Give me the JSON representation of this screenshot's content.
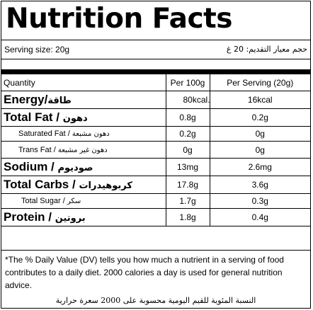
{
  "title": "Nutrition Facts",
  "serving": {
    "en": "Serving size: 20g",
    "ar": "حجم معيار التقديم: 20 غ"
  },
  "table": {
    "headers": [
      "Quantity",
      "Per 100g",
      "Per Serving (20g)"
    ],
    "rows": [
      {
        "label": "Energy/",
        "ar": "طاقة",
        "per100": "80kcal.",
        "perServing": "16kcal"
      },
      {
        "label": "Total Fat / ",
        "ar": "دهون",
        "per100": "0.8g",
        "perServing": "0.2g"
      },
      {
        "label": "Saturated Fat / ",
        "ar": "دهون مشبعة",
        "per100": "0.2g",
        "perServing": "0g"
      },
      {
        "label": "Trans Fat / ",
        "ar": "دهون غير مشبعة",
        "per100": "0g",
        "perServing": "0g"
      },
      {
        "label": "Sodium / ",
        "ar": "صوديوم",
        "per100": "13mg",
        "perServing": "2.6mg"
      },
      {
        "label": "Total Carbs / ",
        "ar": "كربوهيدرات",
        "per100": "17.8g",
        "perServing": "3.6g"
      },
      {
        "label": "Total Sugar / ",
        "ar": "سكر",
        "per100": "1.7g",
        "perServing": "0.3g"
      },
      {
        "label": "Protein / ",
        "ar": "بروتين",
        "per100": "1.8g",
        "perServing": "0.4g"
      }
    ]
  },
  "footer": {
    "en": "*The % Daily Value (DV) tells you how much a nutrient in a serving of food contributes to a daily diet. 2000 calories a day is used for general nutrition advice.",
    "ar": "النسبة المئوية للقيم اليومية محسوبة على 2000 سعرة حرارية"
  }
}
